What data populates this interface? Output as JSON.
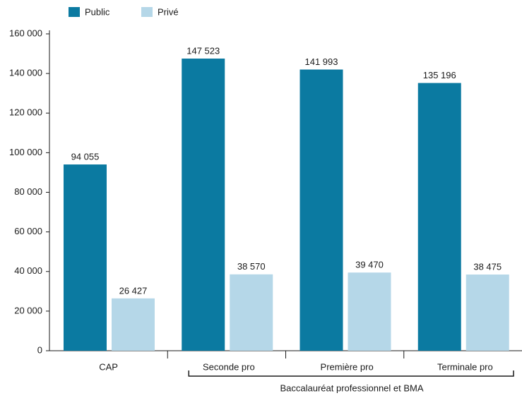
{
  "chart_data": {
    "type": "bar",
    "categories": [
      "CAP",
      "Seconde pro",
      "Première pro",
      "Terminale pro"
    ],
    "series": [
      {
        "name": "Public",
        "color": "#0b7aa1",
        "values": [
          94055,
          147523,
          141993,
          135196
        ],
        "value_labels": [
          "94 055",
          "147 523",
          "141 993",
          "135 196"
        ]
      },
      {
        "name": "Privé",
        "color": "#b5d7e8",
        "values": [
          26427,
          38570,
          39470,
          38475
        ],
        "value_labels": [
          "26 427",
          "38 570",
          "39 470",
          "38 475"
        ]
      }
    ],
    "group_label": "Baccalauréat professionnel et BMA",
    "ylim": [
      0,
      160000
    ],
    "yticks": [
      0,
      {
        "value": 20000,
        "label": "20 000"
      },
      {
        "value": 40000,
        "label": "40 000"
      },
      {
        "value": 60000,
        "label": "60 000"
      },
      {
        "value": 80000,
        "label": "80 000"
      },
      {
        "value": 100000,
        "label": "100 000"
      },
      {
        "value": 120000,
        "label": "120 000"
      },
      {
        "value": 140000,
        "label": "140 000"
      },
      {
        "value": 160000,
        "label": "160 000"
      }
    ],
    "grid": false
  }
}
